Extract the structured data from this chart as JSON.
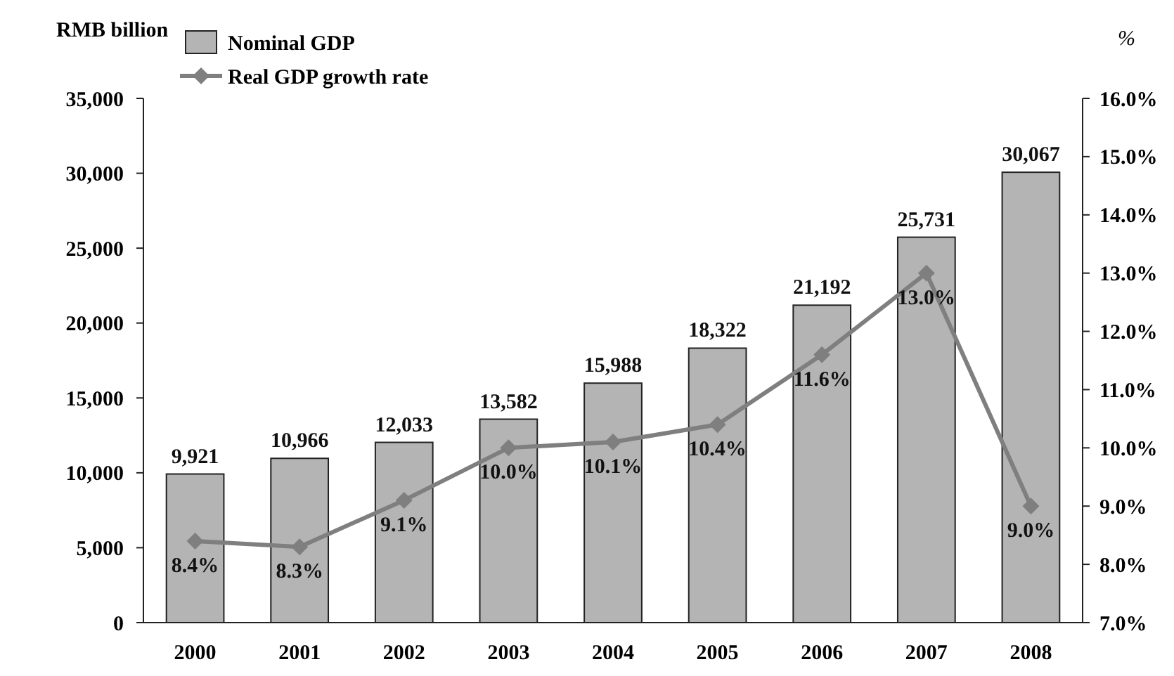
{
  "chart_data": {
    "type": "bar",
    "ylabel": "RMB billion",
    "y2label": "%",
    "categories": [
      "2000",
      "2001",
      "2002",
      "2003",
      "2004",
      "2005",
      "2006",
      "2007",
      "2008"
    ],
    "series": [
      {
        "name": "Nominal GDP",
        "color": "#b4b4b4",
        "values": [
          9921,
          10966,
          12033,
          13582,
          15988,
          18322,
          21192,
          25731,
          30067
        ],
        "value_labels": [
          "9,921",
          "10,966",
          "12,033",
          "13,582",
          "15,988",
          "18,322",
          "21,192",
          "25,731",
          "30,067"
        ]
      },
      {
        "name": "Real GDP growth rate",
        "type": "line",
        "axis": "y2",
        "color": "#7f7f7f",
        "marker": "diamond",
        "values": [
          8.4,
          8.3,
          9.1,
          10.0,
          10.1,
          10.4,
          11.6,
          13.0,
          9.0
        ],
        "value_labels": [
          "8.4%",
          "8.3%",
          "9.1%",
          "10.0%",
          "10.1%",
          "10.4%",
          "11.6%",
          "13.0%",
          "9.0%"
        ]
      }
    ],
    "ylim": [
      0,
      35000
    ],
    "yticks": [
      0,
      {
        "value": 5000,
        "label": "5,000"
      },
      {
        "value": 10000,
        "label": "10,000"
      },
      {
        "value": 15000,
        "label": "15,000"
      },
      {
        "value": 20000,
        "label": "20,000"
      },
      {
        "value": 25000,
        "label": "25,000"
      },
      {
        "value": 30000,
        "label": "30,000"
      },
      {
        "value": 35000,
        "label": "35,000"
      }
    ],
    "y2lim": [
      7,
      16
    ],
    "y2ticks": [
      {
        "value": 7,
        "label": "7.0%"
      },
      {
        "value": 8,
        "label": "8.0%"
      },
      {
        "value": 9,
        "label": "9.0%"
      },
      {
        "value": 10,
        "label": "10.0%"
      },
      {
        "value": 11,
        "label": "11.0%"
      },
      {
        "value": 12,
        "label": "12.0%"
      },
      {
        "value": 13,
        "label": "13.0%"
      },
      {
        "value": 14,
        "label": "14.0%"
      },
      {
        "value": 15,
        "label": "15.0%"
      },
      {
        "value": 16,
        "label": "16.0%"
      }
    ],
    "legend": "top left",
    "grid": false
  }
}
